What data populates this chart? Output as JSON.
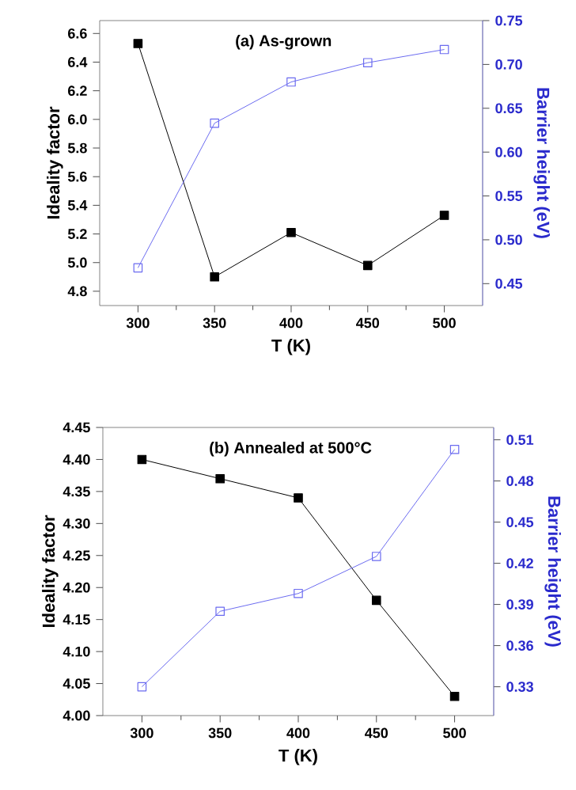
{
  "chart_data": [
    {
      "type": "line",
      "title": "(a) As-grown",
      "xlabel": "T (K)",
      "ylabel": "Ideality factor",
      "y2label": "Barrier height (eV)",
      "x": [
        300,
        350,
        400,
        450,
        500
      ],
      "xlim": [
        275,
        525
      ],
      "xticks": [
        300,
        350,
        400,
        450,
        500
      ],
      "ylim": [
        4.7,
        6.69
      ],
      "yticks": [
        4.8,
        {
          "value": 5,
          "label": "5.0"
        },
        5.2,
        5.4,
        5.6,
        5.8,
        {
          "value": 6,
          "label": "6.0"
        },
        6.2,
        6.4,
        6.6
      ],
      "y2lim": [
        0.425,
        0.75
      ],
      "y2ticks": [
        0.45,
        {
          "value": 0.5,
          "label": "0.50"
        },
        0.55,
        {
          "value": 0.6,
          "label": "0.60"
        },
        0.65,
        {
          "value": 0.7,
          "label": "0.70"
        },
        0.75
      ],
      "marker": "square",
      "line_style": "solid",
      "series": [
        {
          "color": "#000000",
          "values": [
            6.53,
            4.9,
            5.21,
            4.98,
            5.33
          ]
        },
        {
          "color": "#6b6bf0",
          "axis": "y2",
          "values": [
            0.468,
            0.633,
            0.68,
            0.702,
            0.717
          ]
        }
      ]
    },
    {
      "type": "line",
      "title": "(b) Annealed at 500°C",
      "xlabel": "T (K)",
      "ylabel": "Ideality factor",
      "y2label": "Barrier height (eV)",
      "x": [
        300,
        350,
        400,
        450,
        500
      ],
      "xlim": [
        275,
        525
      ],
      "xticks": [
        300,
        350,
        400,
        450,
        500
      ],
      "ylim": [
        4.0,
        4.45
      ],
      "yticks": [
        {
          "value": 4,
          "label": "4.00"
        },
        4.05,
        {
          "value": 4.1,
          "label": "4.10"
        },
        4.15,
        {
          "value": 4.2,
          "label": "4.20"
        },
        4.25,
        {
          "value": 4.3,
          "label": "4.30"
        },
        4.35,
        {
          "value": 4.4,
          "label": "4.40"
        },
        4.45
      ],
      "y2lim": [
        0.309,
        0.519
      ],
      "y2ticks": [
        0.33,
        0.36,
        0.39,
        0.42,
        0.45,
        0.48,
        0.51
      ],
      "marker": "square",
      "line_style": "solid",
      "series": [
        {
          "color": "#000000",
          "values": [
            4.4,
            4.37,
            4.34,
            4.18,
            4.03
          ]
        },
        {
          "color": "#6b6bf0",
          "axis": "y2",
          "values": [
            0.33,
            0.385,
            0.398,
            0.425,
            0.503
          ]
        }
      ]
    }
  ]
}
